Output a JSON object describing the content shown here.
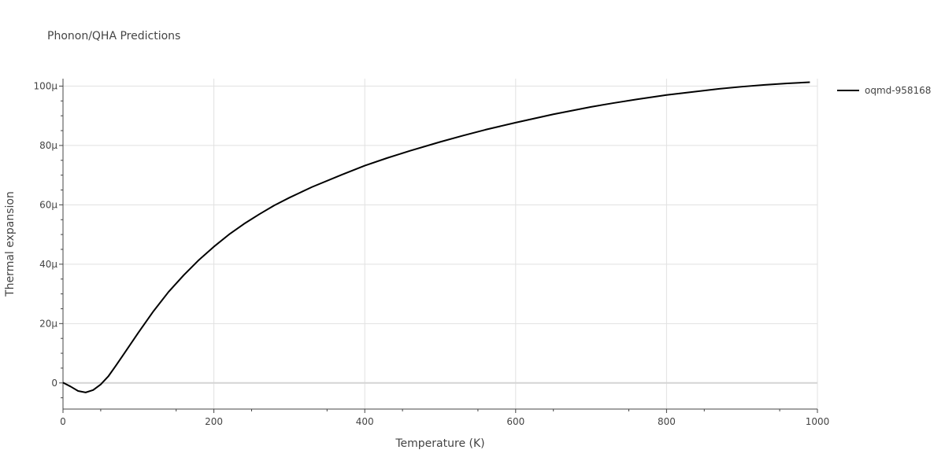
{
  "chart_data": {
    "type": "line",
    "title": "Phonon/QHA Predictions",
    "xlabel": "Temperature (K)",
    "ylabel": "Thermal expansion",
    "xlim": [
      0,
      1000
    ],
    "ylim": [
      -8.8e-06,
      0.0001025
    ],
    "x_ticks": [
      0,
      200,
      400,
      600,
      800,
      1000
    ],
    "x_tick_labels": [
      "0",
      "200",
      "400",
      "600",
      "800",
      "1000"
    ],
    "y_ticks": [
      0,
      2e-05,
      4e-05,
      6e-05,
      8e-05,
      0.0001
    ],
    "y_tick_labels": [
      "0",
      "20µ",
      "40µ",
      "60µ",
      "80µ",
      "100µ"
    ],
    "grid": true,
    "legend_position": "top-right",
    "series": [
      {
        "name": "oqmd-958168",
        "color": "#000000",
        "x": [
          0,
          10,
          20,
          30,
          40,
          50,
          60,
          70,
          80,
          100,
          120,
          140,
          160,
          180,
          200,
          220,
          240,
          260,
          280,
          300,
          330,
          370,
          400,
          430,
          460,
          500,
          530,
          560,
          600,
          650,
          700,
          730,
          760,
          800,
          830,
          870,
          900,
          930,
          960,
          990
        ],
        "y": [
          1e-07,
          -1.2e-06,
          -2.7e-06,
          -3.2e-06,
          -2.4e-06,
          -5e-07,
          2.2e-06,
          5.8e-06,
          9.5e-06,
          1.7e-05,
          2.42e-05,
          3.07e-05,
          3.63e-05,
          4.14e-05,
          4.59e-05,
          5e-05,
          5.36e-05,
          5.68e-05,
          5.98e-05,
          6.24e-05,
          6.6e-05,
          7.02e-05,
          7.32e-05,
          7.58e-05,
          7.82e-05,
          8.12e-05,
          8.33e-05,
          8.53e-05,
          8.77e-05,
          9.05e-05,
          9.3e-05,
          9.43e-05,
          9.55e-05,
          9.7e-05,
          9.79e-05,
          9.91e-05,
          9.98e-05,
          0.0001004,
          0.0001009,
          0.0001013
        ]
      }
    ]
  }
}
